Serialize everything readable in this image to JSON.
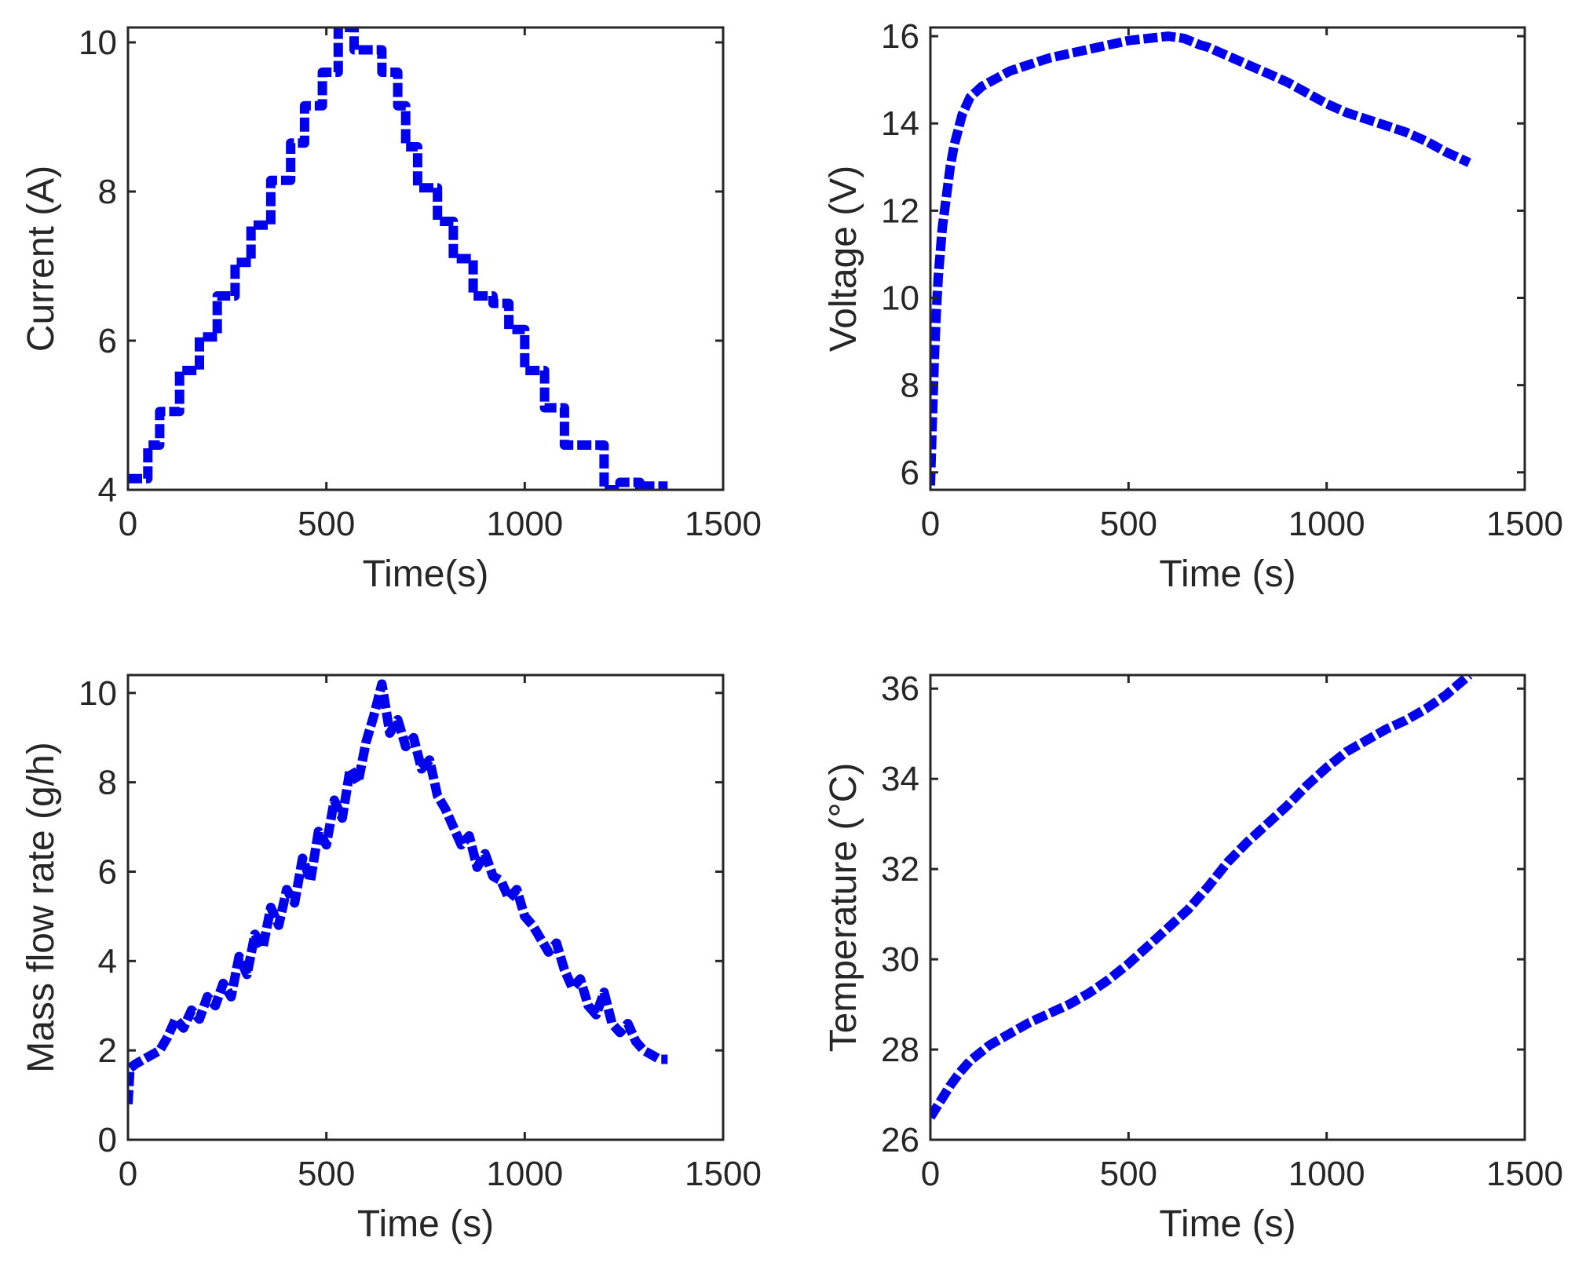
{
  "series_color": "#0000ee",
  "chart_data": [
    {
      "id": "current",
      "type": "line",
      "title": "",
      "xlabel": "Time(s)",
      "ylabel": "Current (A)",
      "xlim": [
        0,
        1500
      ],
      "ylim": [
        4,
        10.2
      ],
      "xticks": [
        0,
        500,
        1000,
        1500
      ],
      "xtick_labels": [
        "0",
        "500",
        "1000",
        "1500"
      ],
      "yticks": [
        4,
        6,
        8,
        10
      ],
      "ytick_labels": [
        "4",
        "6",
        "8",
        "10"
      ],
      "grid": false,
      "series": [
        {
          "name": "Current",
          "x": [
            0,
            50,
            50,
            80,
            80,
            130,
            130,
            180,
            180,
            225,
            225,
            270,
            270,
            310,
            310,
            360,
            360,
            410,
            410,
            445,
            445,
            490,
            490,
            530,
            530,
            570,
            570,
            640,
            640,
            680,
            680,
            700,
            700,
            730,
            730,
            780,
            780,
            820,
            820,
            870,
            870,
            920,
            920,
            960,
            960,
            1000,
            1000,
            1050,
            1050,
            1100,
            1100,
            1140,
            1140,
            1200,
            1200,
            1240,
            1240,
            1290,
            1290,
            1300,
            1300,
            1360
          ],
          "y": [
            4.15,
            4.15,
            4.6,
            4.6,
            5.05,
            5.05,
            5.6,
            5.6,
            6.05,
            6.05,
            6.6,
            6.6,
            7.05,
            7.05,
            7.55,
            7.55,
            8.15,
            8.15,
            8.65,
            8.65,
            9.15,
            9.15,
            9.6,
            9.6,
            10.2,
            10.2,
            9.9,
            9.9,
            9.6,
            9.6,
            9.15,
            9.15,
            8.6,
            8.6,
            8.05,
            8.05,
            7.6,
            7.6,
            7.1,
            7.1,
            6.6,
            6.6,
            6.5,
            6.5,
            6.15,
            6.15,
            5.6,
            5.6,
            5.1,
            5.1,
            4.6,
            4.6,
            4.6,
            4.6,
            4.0,
            4.0,
            4.1,
            4.1,
            4.0,
            4.0,
            4.05,
            4.05
          ]
        }
      ]
    },
    {
      "id": "voltage",
      "type": "line",
      "title": "",
      "xlabel": "Time (s)",
      "ylabel": "Voltage (V)",
      "xlim": [
        0,
        1500
      ],
      "ylim": [
        5.6,
        16.2
      ],
      "xticks": [
        0,
        500,
        1000,
        1500
      ],
      "xtick_labels": [
        "0",
        "500",
        "1000",
        "1500"
      ],
      "yticks": [
        6,
        8,
        10,
        12,
        14,
        16
      ],
      "ytick_labels": [
        "6",
        "8",
        "10",
        "12",
        "14",
        "16"
      ],
      "grid": false,
      "series": [
        {
          "name": "Voltage",
          "x": [
            0,
            5,
            10,
            15,
            20,
            30,
            40,
            50,
            60,
            80,
            100,
            130,
            160,
            200,
            250,
            300,
            350,
            400,
            450,
            500,
            550,
            600,
            640,
            680,
            700,
            750,
            800,
            850,
            900,
            950,
            1000,
            1050,
            1100,
            1150,
            1200,
            1250,
            1300,
            1360
          ],
          "y": [
            5.7,
            7.2,
            8.6,
            9.7,
            10.5,
            11.6,
            12.3,
            13.0,
            13.5,
            14.2,
            14.6,
            14.85,
            15.0,
            15.2,
            15.35,
            15.5,
            15.6,
            15.7,
            15.8,
            15.9,
            15.95,
            16.0,
            15.95,
            15.8,
            15.75,
            15.55,
            15.35,
            15.15,
            14.95,
            14.7,
            14.45,
            14.25,
            14.1,
            13.95,
            13.8,
            13.6,
            13.35,
            13.1
          ]
        }
      ]
    },
    {
      "id": "mass-flow",
      "type": "line",
      "title": "",
      "xlabel": "Time (s)",
      "ylabel": "Mass flow rate (g/h)",
      "xlim": [
        0,
        1500
      ],
      "ylim": [
        0,
        10.4
      ],
      "xticks": [
        0,
        500,
        1000,
        1500
      ],
      "xtick_labels": [
        "0",
        "500",
        "1000",
        "1500"
      ],
      "yticks": [
        0,
        2,
        4,
        6,
        8,
        10
      ],
      "ytick_labels": [
        "0",
        "2",
        "4",
        "6",
        "8",
        "10"
      ],
      "grid": false,
      "series": [
        {
          "name": "Mass flow rate",
          "x": [
            0,
            5,
            20,
            40,
            60,
            80,
            100,
            120,
            140,
            160,
            180,
            200,
            220,
            240,
            260,
            280,
            300,
            320,
            340,
            360,
            380,
            400,
            420,
            440,
            460,
            480,
            500,
            520,
            540,
            560,
            580,
            600,
            620,
            640,
            660,
            680,
            700,
            720,
            740,
            760,
            780,
            800,
            820,
            840,
            860,
            880,
            900,
            920,
            940,
            960,
            980,
            1000,
            1020,
            1040,
            1060,
            1080,
            1100,
            1120,
            1140,
            1160,
            1180,
            1200,
            1220,
            1240,
            1260,
            1280,
            1300,
            1320,
            1340,
            1360
          ],
          "y": [
            0.8,
            1.6,
            1.7,
            1.8,
            1.9,
            2.0,
            2.3,
            2.7,
            2.5,
            2.9,
            2.7,
            3.2,
            3.0,
            3.5,
            3.2,
            4.1,
            3.7,
            4.6,
            4.3,
            5.2,
            4.8,
            5.6,
            5.3,
            6.3,
            5.8,
            6.9,
            6.6,
            7.6,
            7.2,
            8.3,
            8.0,
            8.9,
            9.5,
            10.2,
            9.1,
            9.4,
            8.8,
            9.0,
            8.3,
            8.5,
            7.7,
            7.4,
            7.0,
            6.6,
            6.8,
            6.1,
            6.4,
            5.9,
            5.8,
            5.4,
            5.6,
            5.0,
            4.8,
            4.5,
            4.2,
            4.4,
            3.8,
            3.4,
            3.6,
            3.0,
            2.8,
            3.3,
            2.6,
            2.4,
            2.6,
            2.2,
            2.0,
            1.9,
            1.8,
            1.8
          ]
        }
      ]
    },
    {
      "id": "temperature",
      "type": "line",
      "title": "",
      "xlabel": "Time (s)",
      "ylabel": "Temperature (°C)",
      "xlim": [
        0,
        1500
      ],
      "ylim": [
        26,
        36.3
      ],
      "xticks": [
        0,
        500,
        1000,
        1500
      ],
      "xtick_labels": [
        "0",
        "500",
        "1000",
        "1500"
      ],
      "yticks": [
        26,
        28,
        30,
        32,
        34,
        36
      ],
      "ytick_labels": [
        "26",
        "28",
        "30",
        "32",
        "34",
        "36"
      ],
      "grid": false,
      "series": [
        {
          "name": "Temperature",
          "x": [
            0,
            25,
            50,
            75,
            100,
            150,
            200,
            250,
            300,
            350,
            400,
            450,
            500,
            550,
            600,
            650,
            700,
            750,
            800,
            850,
            900,
            950,
            1000,
            1050,
            1100,
            1150,
            1200,
            1250,
            1300,
            1360
          ],
          "y": [
            26.5,
            26.85,
            27.2,
            27.5,
            27.75,
            28.1,
            28.35,
            28.6,
            28.8,
            29.0,
            29.25,
            29.55,
            29.9,
            30.3,
            30.7,
            31.1,
            31.6,
            32.15,
            32.6,
            33.0,
            33.4,
            33.85,
            34.25,
            34.6,
            34.85,
            35.1,
            35.3,
            35.55,
            35.85,
            36.3
          ]
        }
      ]
    }
  ]
}
